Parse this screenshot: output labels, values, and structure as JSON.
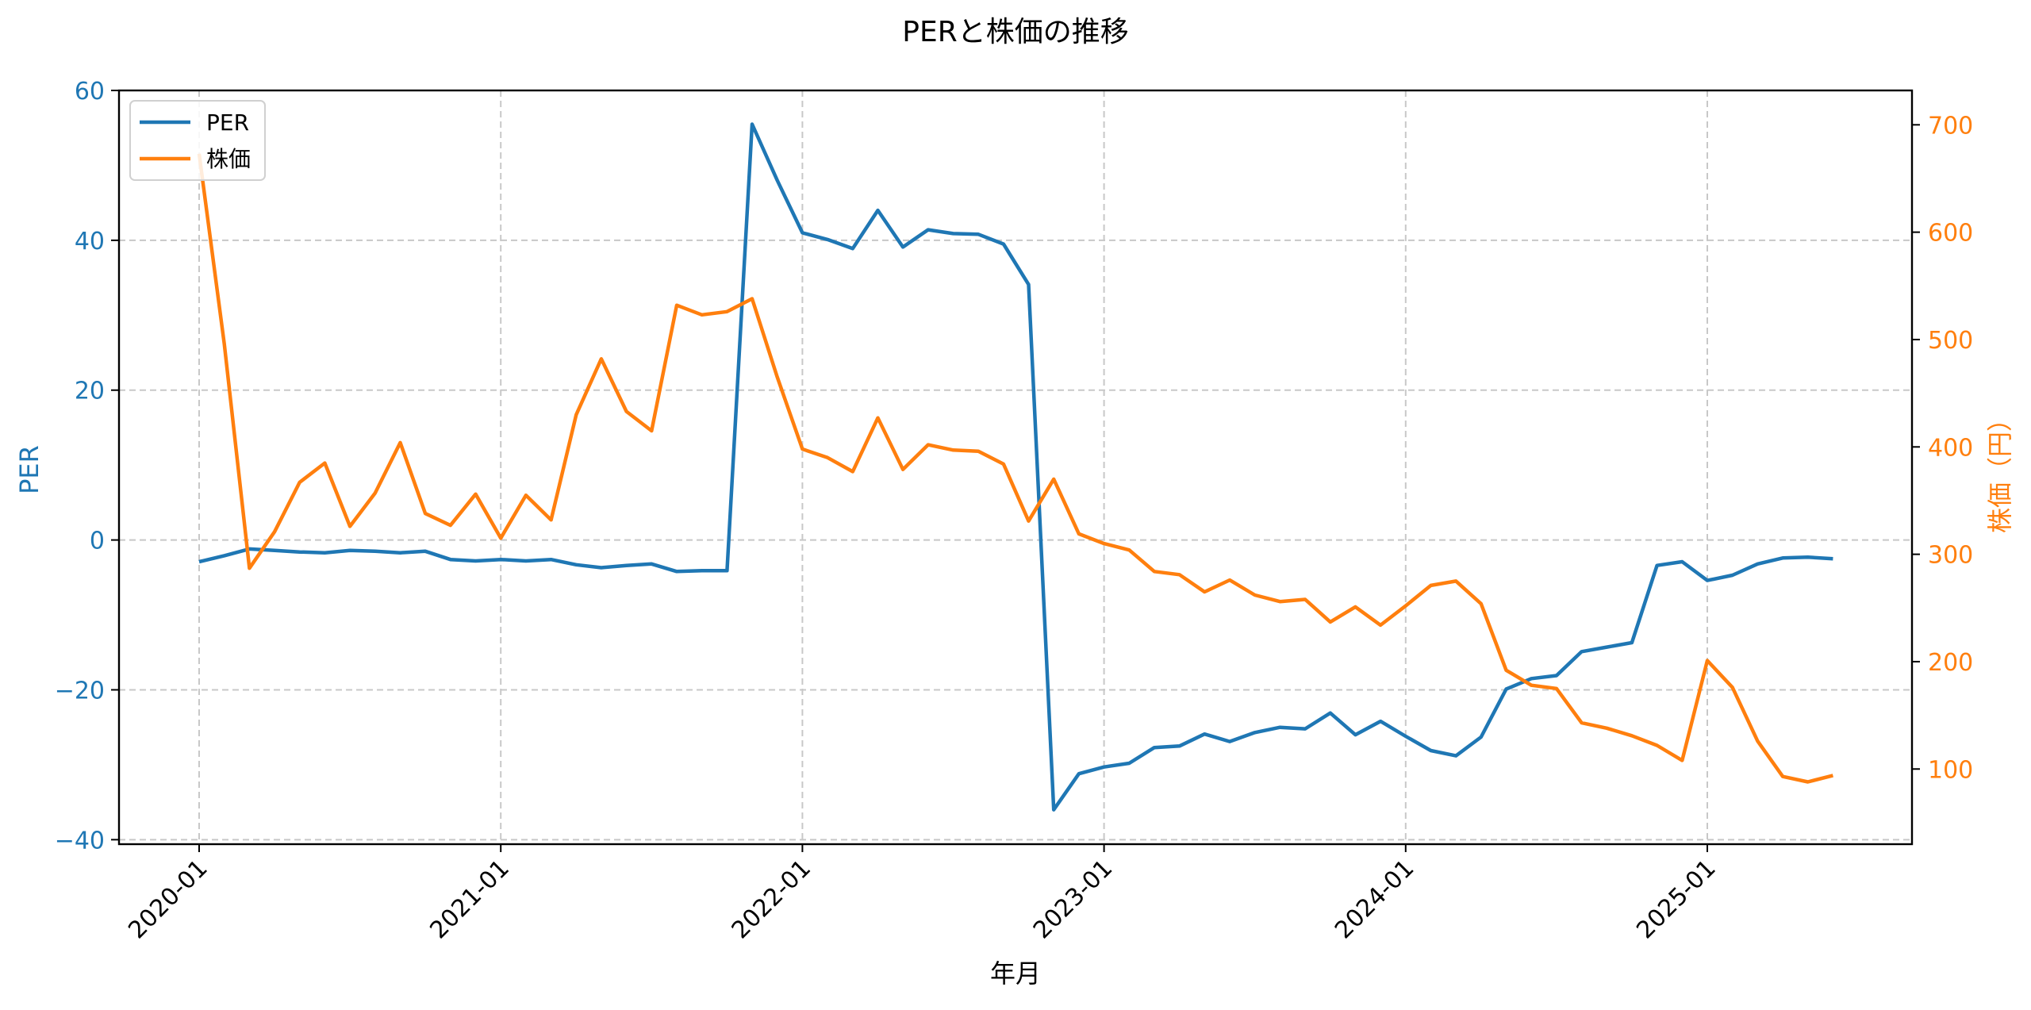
{
  "chart_data": {
    "type": "line",
    "title": "PERと株価の推移",
    "xlabel": "年月",
    "ylabel": "PER",
    "y2label": "株価（円）",
    "ylim": [
      -40.6,
      60
    ],
    "y2lim": [
      30,
      732
    ],
    "grid": true,
    "legend_position": "upper left",
    "x_ticks": [
      "2020-01",
      "2021-01",
      "2022-01",
      "2023-01",
      "2024-01",
      "2025-01"
    ],
    "y_ticks": [
      -40,
      -20,
      0,
      20,
      40,
      60
    ],
    "y2_ticks": [
      100,
      200,
      300,
      400,
      500,
      600,
      700
    ],
    "x": [
      "2020-01",
      "2020-02",
      "2020-03",
      "2020-04",
      "2020-05",
      "2020-06",
      "2020-07",
      "2020-08",
      "2020-09",
      "2020-10",
      "2020-11",
      "2020-12",
      "2021-01",
      "2021-02",
      "2021-03",
      "2021-04",
      "2021-05",
      "2021-06",
      "2021-07",
      "2021-08",
      "2021-09",
      "2021-10",
      "2021-11",
      "2021-12",
      "2022-01",
      "2022-02",
      "2022-03",
      "2022-04",
      "2022-05",
      "2022-06",
      "2022-07",
      "2022-08",
      "2022-09",
      "2022-10",
      "2022-11",
      "2022-12",
      "2023-01",
      "2023-02",
      "2023-03",
      "2023-04",
      "2023-05",
      "2023-06",
      "2023-07",
      "2023-08",
      "2023-09",
      "2023-10",
      "2023-11",
      "2023-12",
      "2024-01",
      "2024-02",
      "2024-03",
      "2024-04",
      "2024-05",
      "2024-06",
      "2024-07",
      "2024-08",
      "2024-09",
      "2024-10",
      "2024-11",
      "2024-12",
      "2025-01",
      "2025-02",
      "2025-03",
      "2025-04",
      "2025-05",
      "2025-06"
    ],
    "series": [
      {
        "name": "PER",
        "axis": "left",
        "color": "#1f77b4",
        "values": [
          -2.9,
          -2.1,
          -1.2,
          -1.4,
          -1.6,
          -1.7,
          -1.4,
          -1.5,
          -1.7,
          -1.5,
          -2.6,
          -2.8,
          -2.6,
          -2.8,
          -2.6,
          -3.3,
          -3.7,
          -3.4,
          -3.2,
          -4.2,
          -4.1,
          -4.1,
          55.5,
          48.0,
          41.0,
          40.1,
          38.9,
          44.0,
          39.1,
          41.4,
          40.9,
          40.8,
          39.5,
          34.1,
          -36.0,
          -31.2,
          -30.3,
          -29.8,
          -27.7,
          -27.5,
          -25.9,
          -26.9,
          -25.7,
          -25.0,
          -25.2,
          -23.1,
          -26.0,
          -24.2,
          -26.2,
          -28.1,
          -28.8,
          -26.3,
          -19.9,
          -18.5,
          -18.1,
          -14.9,
          -14.3,
          -13.7,
          -3.4,
          -2.9,
          -5.4,
          -4.7,
          -3.2,
          -2.4,
          -2.3,
          -2.5
        ]
      },
      {
        "name": "株価",
        "axis": "right",
        "color": "#ff7f0e",
        "values": [
          673,
          496,
          287,
          321,
          367,
          385,
          326,
          357,
          404,
          338,
          327,
          356,
          315,
          355,
          332,
          430,
          482,
          433,
          415,
          532,
          523,
          526,
          538,
          465,
          398,
          390,
          377,
          427,
          379,
          402,
          397,
          396,
          384,
          331,
          370,
          319,
          310,
          304,
          284,
          281,
          265,
          276,
          262,
          256,
          258,
          237,
          251,
          234,
          252,
          271,
          275,
          254,
          192,
          178,
          175,
          143,
          138,
          131,
          122,
          108,
          201,
          176,
          126,
          93,
          88,
          94
        ]
      }
    ]
  },
  "colors": {
    "per": "#1f77b4",
    "price": "#ff7f0e",
    "grid": "#c8c8c8",
    "axis": "#000000",
    "legend_border": "#d0d0d0"
  },
  "legend": {
    "items": [
      {
        "label": "PER",
        "color": "#1f77b4"
      },
      {
        "label": "株価",
        "color": "#ff7f0e"
      }
    ]
  }
}
